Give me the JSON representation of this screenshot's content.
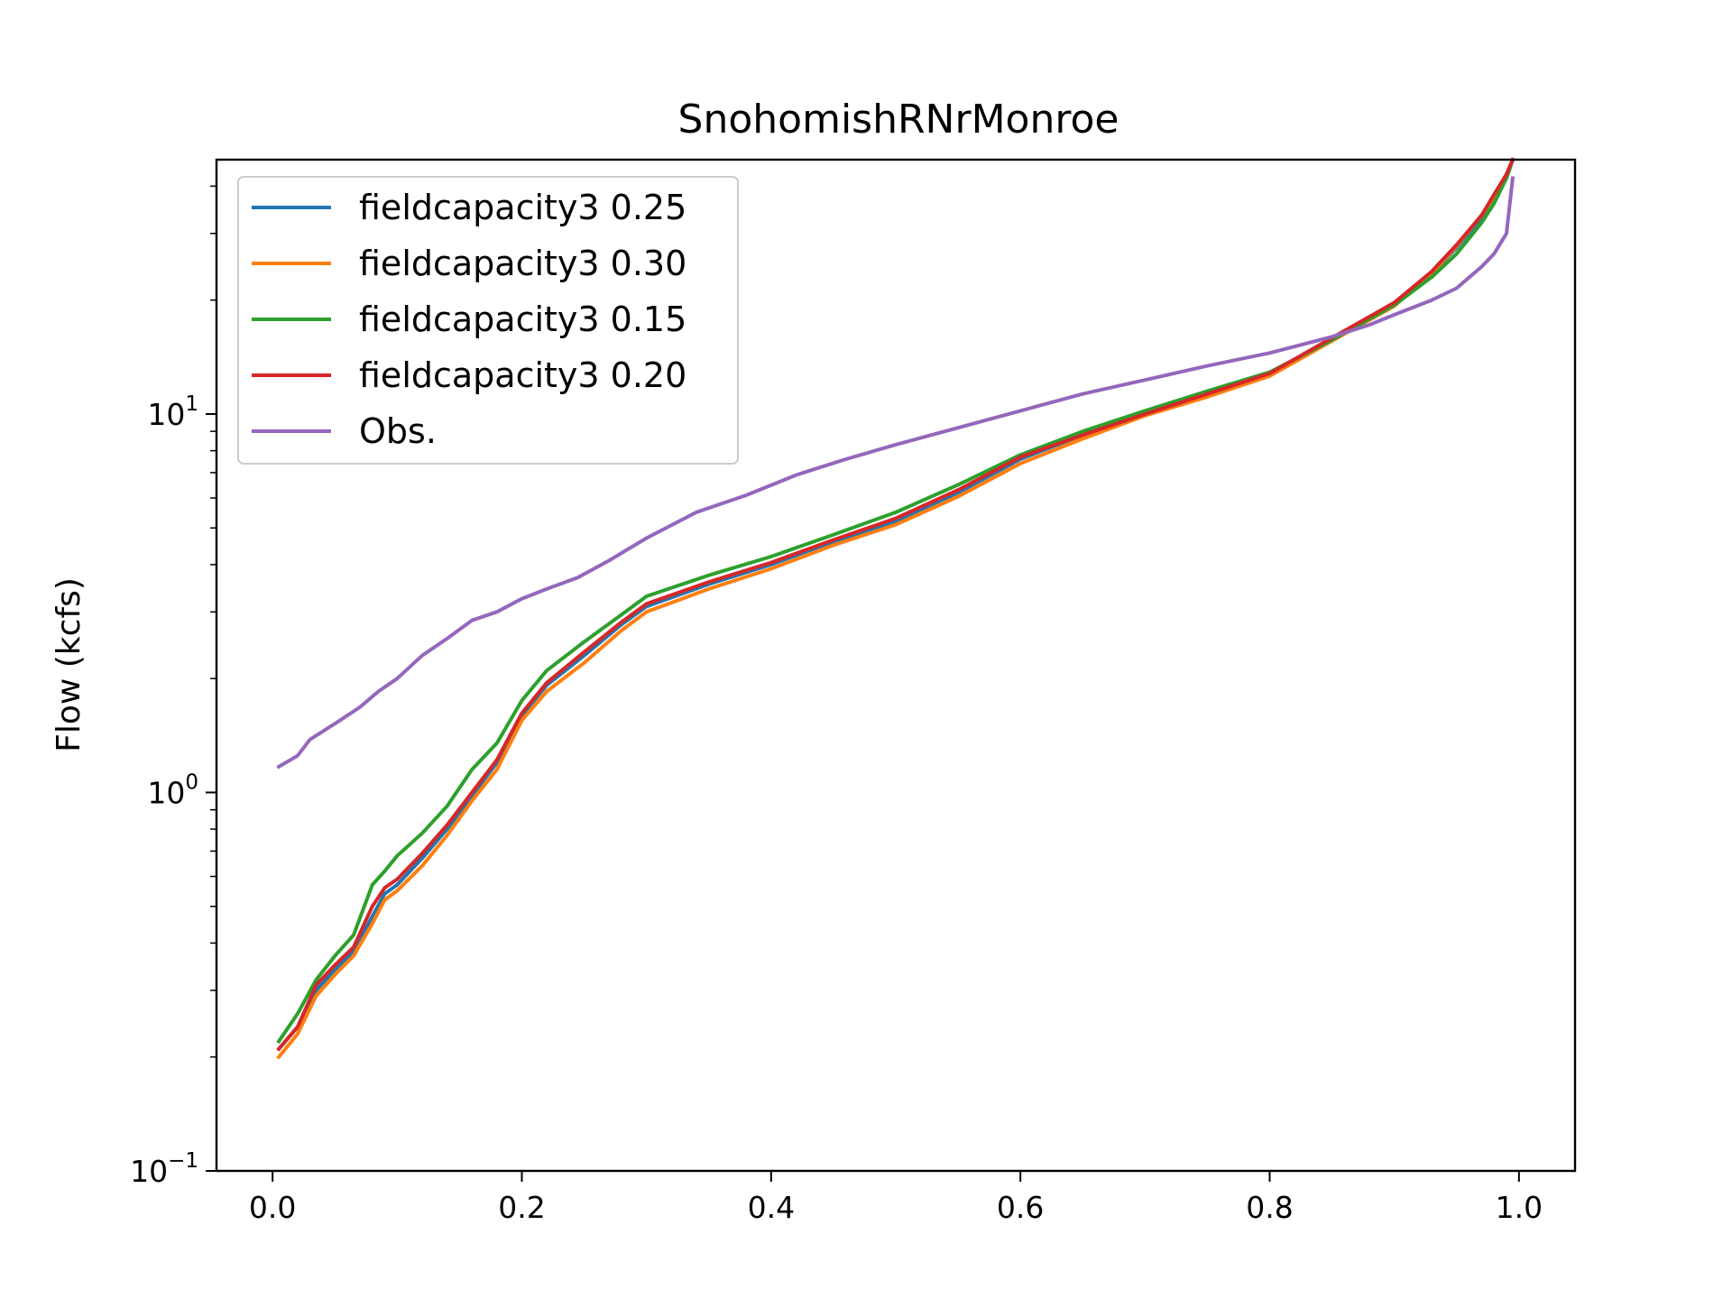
{
  "chart_data": {
    "type": "line",
    "title": "SnohomishRNrMonroe",
    "xlabel": "",
    "ylabel": "Flow (kcfs)",
    "xlim": [
      -0.045,
      1.045
    ],
    "ylim": [
      0.1,
      47
    ],
    "yscale": "log",
    "grid": false,
    "legend_position": "top-left",
    "x_ticks": [
      "0.0",
      "0.2",
      "0.4",
      "0.6",
      "0.8",
      "1.0"
    ],
    "y_ticks": [
      {
        "value": 0.1,
        "base": "10",
        "exp": "−1"
      },
      {
        "value": 1,
        "base": "10",
        "exp": "0"
      },
      {
        "value": 10,
        "base": "10",
        "exp": "1"
      }
    ],
    "series": [
      {
        "name": "fieldcapacity3 0.25",
        "color": "#1f77b4",
        "x": [
          0.005,
          0.02,
          0.035,
          0.05,
          0.065,
          0.08,
          0.09,
          0.1,
          0.12,
          0.14,
          0.16,
          0.18,
          0.2,
          0.22,
          0.25,
          0.28,
          0.3,
          0.35,
          0.4,
          0.45,
          0.5,
          0.55,
          0.6,
          0.65,
          0.7,
          0.75,
          0.8,
          0.85,
          0.9,
          0.93,
          0.95,
          0.97,
          0.98,
          0.99,
          0.995
        ],
        "y": [
          0.21,
          0.24,
          0.3,
          0.34,
          0.38,
          0.47,
          0.54,
          0.57,
          0.67,
          0.8,
          0.98,
          1.2,
          1.6,
          1.92,
          2.3,
          2.78,
          3.1,
          3.55,
          4.0,
          4.6,
          5.2,
          6.2,
          7.6,
          8.8,
          10.0,
          11.3,
          12.8,
          15.8,
          19.5,
          23.5,
          27.5,
          33.0,
          37.0,
          42.0,
          47.0
        ]
      },
      {
        "name": "fieldcapacity3 0.30",
        "color": "#ff7f0e",
        "x": [
          0.005,
          0.02,
          0.035,
          0.05,
          0.065,
          0.08,
          0.09,
          0.1,
          0.12,
          0.14,
          0.16,
          0.18,
          0.2,
          0.22,
          0.25,
          0.28,
          0.3,
          0.35,
          0.4,
          0.45,
          0.5,
          0.55,
          0.6,
          0.65,
          0.7,
          0.75,
          0.8,
          0.85,
          0.9,
          0.93,
          0.95,
          0.97,
          0.98,
          0.99,
          0.995
        ],
        "y": [
          0.2,
          0.23,
          0.29,
          0.33,
          0.37,
          0.45,
          0.52,
          0.55,
          0.64,
          0.77,
          0.95,
          1.15,
          1.55,
          1.85,
          2.2,
          2.68,
          3.0,
          3.45,
          3.9,
          4.5,
          5.1,
          6.05,
          7.4,
          8.6,
          9.9,
          11.1,
          12.6,
          15.6,
          19.3,
          23.5,
          27.8,
          33.5,
          37.5,
          43.0,
          47.0
        ]
      },
      {
        "name": "fieldcapacity3 0.15",
        "color": "#2ca02c",
        "x": [
          0.005,
          0.02,
          0.035,
          0.05,
          0.065,
          0.08,
          0.09,
          0.1,
          0.12,
          0.14,
          0.16,
          0.18,
          0.2,
          0.22,
          0.25,
          0.28,
          0.3,
          0.35,
          0.4,
          0.45,
          0.5,
          0.55,
          0.6,
          0.65,
          0.7,
          0.75,
          0.8,
          0.85,
          0.9,
          0.93,
          0.95,
          0.97,
          0.98,
          0.99,
          0.995
        ],
        "y": [
          0.22,
          0.26,
          0.32,
          0.37,
          0.42,
          0.57,
          0.62,
          0.68,
          0.78,
          0.92,
          1.15,
          1.35,
          1.75,
          2.1,
          2.5,
          2.95,
          3.3,
          3.75,
          4.2,
          4.8,
          5.5,
          6.5,
          7.8,
          9.0,
          10.2,
          11.5,
          12.9,
          15.7,
          19.4,
          23.0,
          26.5,
          32.0,
          36.0,
          42.0,
          47.0
        ]
      },
      {
        "name": "fieldcapacity3 0.20",
        "color": "#d62728",
        "x": [
          0.005,
          0.02,
          0.035,
          0.05,
          0.065,
          0.08,
          0.09,
          0.1,
          0.12,
          0.14,
          0.16,
          0.18,
          0.2,
          0.22,
          0.25,
          0.28,
          0.3,
          0.35,
          0.4,
          0.45,
          0.5,
          0.55,
          0.6,
          0.65,
          0.7,
          0.75,
          0.8,
          0.85,
          0.9,
          0.93,
          0.95,
          0.97,
          0.98,
          0.99,
          0.995
        ],
        "y": [
          0.21,
          0.24,
          0.31,
          0.35,
          0.39,
          0.5,
          0.56,
          0.59,
          0.69,
          0.82,
          1.0,
          1.22,
          1.62,
          1.95,
          2.35,
          2.82,
          3.15,
          3.6,
          4.05,
          4.65,
          5.3,
          6.3,
          7.7,
          8.8,
          10.0,
          11.3,
          12.8,
          15.9,
          19.7,
          23.8,
          28.0,
          33.5,
          38.0,
          43.0,
          47.0
        ]
      },
      {
        "name": "Obs.",
        "color": "#9467bd",
        "x": [
          0.005,
          0.02,
          0.03,
          0.05,
          0.07,
          0.085,
          0.1,
          0.12,
          0.14,
          0.16,
          0.18,
          0.2,
          0.22,
          0.245,
          0.27,
          0.3,
          0.34,
          0.38,
          0.42,
          0.46,
          0.5,
          0.55,
          0.6,
          0.65,
          0.7,
          0.75,
          0.8,
          0.85,
          0.88,
          0.9,
          0.93,
          0.95,
          0.97,
          0.98,
          0.99,
          0.995
        ],
        "y": [
          1.17,
          1.25,
          1.38,
          1.52,
          1.68,
          1.85,
          2.0,
          2.3,
          2.55,
          2.85,
          3.0,
          3.25,
          3.45,
          3.7,
          4.1,
          4.7,
          5.5,
          6.1,
          6.9,
          7.6,
          8.3,
          9.2,
          10.2,
          11.3,
          12.3,
          13.4,
          14.5,
          16.0,
          17.2,
          18.3,
          20.0,
          21.5,
          24.5,
          26.5,
          30.0,
          42.0
        ]
      }
    ]
  }
}
